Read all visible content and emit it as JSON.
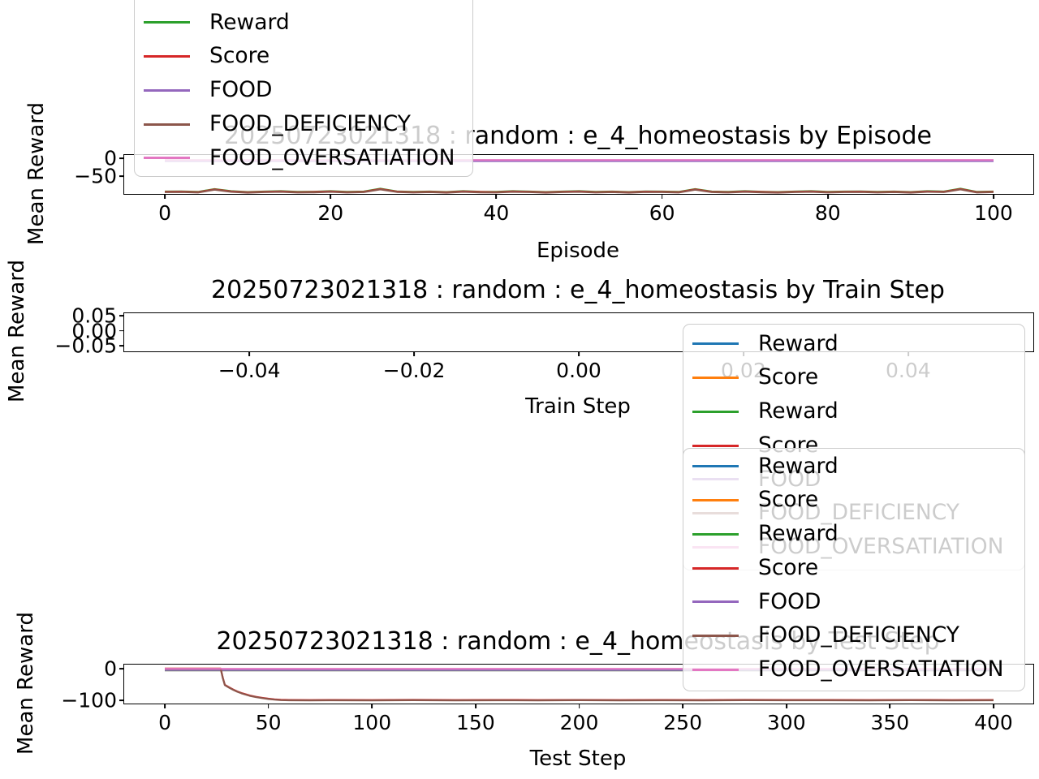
{
  "figure": {
    "background": "#ffffff"
  },
  "colors": {
    "blue": "#1f77b4",
    "orange": "#ff7f0e",
    "green": "#2ca02c",
    "red": "#d62728",
    "purple": "#9467bd",
    "brown": "#8c564b",
    "pink": "#e377c2",
    "spine": "#000000",
    "legend_edge": "#cccccc"
  },
  "chart_data": [
    {
      "id": "by-episode",
      "type": "line",
      "title": "20250723021318 : random : e_4_homeostasis by Episode",
      "xlabel": "Episode",
      "ylabel": "Mean Reward",
      "xlim": [
        -4.9,
        104.8
      ],
      "ylim": [
        -101,
        10.3
      ],
      "grid": false,
      "xticks": [
        {
          "v": 0,
          "label": "0"
        },
        {
          "v": 20,
          "label": "20"
        },
        {
          "v": 40,
          "label": "40"
        },
        {
          "v": 60,
          "label": "60"
        },
        {
          "v": 80,
          "label": "80"
        },
        {
          "v": 100,
          "label": "100"
        }
      ],
      "yticks": [
        {
          "v": 0,
          "label": "0"
        },
        {
          "v": -50,
          "label": "−50"
        }
      ],
      "series": [
        {
          "name": "Reward",
          "color": "#2ca02c",
          "x": [
            0,
            2,
            4,
            6,
            8,
            10,
            12,
            14,
            16,
            18,
            20,
            22,
            24,
            26,
            28,
            30,
            32,
            34,
            36,
            38,
            40,
            42,
            44,
            46,
            48,
            50,
            52,
            54,
            56,
            58,
            60,
            62,
            64,
            66,
            68,
            70,
            72,
            74,
            76,
            78,
            80,
            82,
            84,
            86,
            88,
            90,
            92,
            94,
            96,
            98,
            100
          ],
          "y": [
            -94,
            -93.5,
            -95,
            -87,
            -93,
            -95.5,
            -94,
            -93,
            -95,
            -94.5,
            -93,
            -95,
            -94,
            -86,
            -93.5,
            -95,
            -94,
            -95.5,
            -93,
            -94.5,
            -95,
            -93,
            -94,
            -95.5,
            -94,
            -93,
            -95,
            -94,
            -95.5,
            -93.5,
            -94,
            -95,
            -87,
            -94,
            -95,
            -93,
            -94.5,
            -95.5,
            -94,
            -93,
            -95,
            -94,
            -93.5,
            -95,
            -94,
            -95.5,
            -93,
            -94,
            -86,
            -95,
            -94
          ]
        },
        {
          "name": "Score",
          "color": "#d62728",
          "x": [
            0,
            2,
            4,
            6,
            8,
            10,
            12,
            14,
            16,
            18,
            20,
            22,
            24,
            26,
            28,
            30,
            32,
            34,
            36,
            38,
            40,
            42,
            44,
            46,
            48,
            50,
            52,
            54,
            56,
            58,
            60,
            62,
            64,
            66,
            68,
            70,
            72,
            74,
            76,
            78,
            80,
            82,
            84,
            86,
            88,
            90,
            92,
            94,
            96,
            98,
            100
          ],
          "y": [
            -94.8,
            -94.3,
            -95.8,
            -87.8,
            -93.8,
            -96.3,
            -94.8,
            -93.8,
            -95.8,
            -95.3,
            -93.8,
            -95.8,
            -94.8,
            -86.8,
            -94.3,
            -95.8,
            -94.8,
            -96.3,
            -93.8,
            -95.3,
            -95.8,
            -93.8,
            -94.8,
            -96.3,
            -94.8,
            -93.8,
            -95.8,
            -94.8,
            -96.3,
            -94.3,
            -94.8,
            -95.8,
            -87.8,
            -94.8,
            -95.8,
            -93.8,
            -95.3,
            -96.3,
            -94.8,
            -93.8,
            -95.8,
            -94.8,
            -94.3,
            -95.8,
            -94.8,
            -96.3,
            -93.8,
            -94.8,
            -86.8,
            -95.8,
            -94.8
          ]
        },
        {
          "name": "FOOD",
          "color": "#9467bd",
          "x": [
            0,
            100
          ],
          "y": [
            -7,
            -7
          ]
        },
        {
          "name": "FOOD_DEFICIENCY",
          "color": "#8c564b",
          "x": [
            0,
            2,
            4,
            6,
            8,
            10,
            12,
            14,
            16,
            18,
            20,
            22,
            24,
            26,
            28,
            30,
            32,
            34,
            36,
            38,
            40,
            42,
            44,
            46,
            48,
            50,
            52,
            54,
            56,
            58,
            60,
            62,
            64,
            66,
            68,
            70,
            72,
            74,
            76,
            78,
            80,
            82,
            84,
            86,
            88,
            90,
            92,
            94,
            96,
            98,
            100
          ],
          "y": [
            -96,
            -95.5,
            -97,
            -89,
            -95,
            -97.5,
            -96,
            -95,
            -97,
            -96.5,
            -95,
            -97,
            -96,
            -88,
            -95.5,
            -97,
            -96,
            -97.5,
            -95,
            -96.5,
            -97,
            -95,
            -96,
            -97.5,
            -96,
            -95,
            -97,
            -96,
            -97.5,
            -95.5,
            -96,
            -97,
            -89,
            -96,
            -97,
            -95,
            -96.5,
            -97.5,
            -96,
            -95,
            -97,
            -96,
            -95.5,
            -97,
            -96,
            -97.5,
            -95,
            -96,
            -88,
            -97,
            -96
          ]
        },
        {
          "name": "FOOD_OVERSATIATION",
          "color": "#e377c2",
          "x": [
            0,
            100
          ],
          "y": [
            -4,
            -4
          ]
        }
      ]
    },
    {
      "id": "by-train-step",
      "type": "line",
      "title": "20250723021318 : random : e_4_homeostasis by Train Step",
      "xlabel": "Train Step",
      "ylabel": "Mean Reward",
      "xlim": [
        -0.0552,
        0.0552
      ],
      "ylim": [
        -0.0689,
        0.0581
      ],
      "grid": false,
      "xticks": [
        {
          "v": -0.04,
          "label": "−0.04"
        },
        {
          "v": -0.02,
          "label": "−0.02"
        },
        {
          "v": 0.0,
          "label": "0.00"
        },
        {
          "v": 0.02,
          "label": "0.02"
        },
        {
          "v": 0.04,
          "label": "0.04"
        }
      ],
      "yticks": [
        {
          "v": 0.05,
          "label": "0.05"
        },
        {
          "v": 0.0,
          "label": "0.00"
        },
        {
          "v": -0.05,
          "label": "−0.05"
        }
      ],
      "series": []
    },
    {
      "id": "by-test-step",
      "type": "line",
      "title": "20250723021318 : random : e_4_homeostasis by Test Step",
      "xlabel": "Test Step",
      "ylabel": "Mean Reward",
      "xlim": [
        -19.6,
        419.2
      ],
      "ylim": [
        -110.3,
        12.8
      ],
      "grid": false,
      "xticks": [
        {
          "v": 0,
          "label": "0"
        },
        {
          "v": 50,
          "label": "50"
        },
        {
          "v": 100,
          "label": "100"
        },
        {
          "v": 150,
          "label": "150"
        },
        {
          "v": 200,
          "label": "200"
        },
        {
          "v": 250,
          "label": "250"
        },
        {
          "v": 300,
          "label": "300"
        },
        {
          "v": 350,
          "label": "350"
        },
        {
          "v": 400,
          "label": "400"
        }
      ],
      "yticks": [
        {
          "v": 0,
          "label": "0"
        },
        {
          "v": -100,
          "label": "−100"
        }
      ],
      "series": [
        {
          "name": "Reward",
          "color": "#1f77b4",
          "x": [
            0,
            400
          ],
          "y": [
            -5.5,
            -5.5
          ]
        },
        {
          "name": "Score",
          "color": "#ff7f0e",
          "x": [
            0,
            400
          ],
          "y": [
            -5.2,
            -5.2
          ]
        },
        {
          "name": "Reward-2",
          "color": "#2ca02c",
          "x": [
            0,
            400
          ],
          "y": [
            -4.8,
            -4.8
          ]
        },
        {
          "name": "Score-2",
          "color": "#d62728",
          "x": [
            0,
            5,
            10,
            15,
            20,
            25,
            27,
            28,
            29,
            31,
            33,
            35,
            37,
            39,
            41,
            44,
            47,
            50,
            53,
            56,
            60,
            70,
            80,
            100,
            120,
            140,
            160,
            180,
            200,
            220,
            240,
            260,
            280,
            300,
            320,
            340,
            360,
            380,
            400
          ],
          "y": [
            0.2,
            0.2,
            0.2,
            0.2,
            0.2,
            0.2,
            0.2,
            -29,
            -51,
            -59,
            -66,
            -72,
            -77,
            -81,
            -85,
            -89,
            -92,
            -95,
            -97,
            -98.5,
            -99,
            -99.4,
            -99,
            -99.3,
            -98.8,
            -99.2,
            -99,
            -99.4,
            -98.9,
            -99.2,
            -99,
            -99.3,
            -98.8,
            -99.1,
            -99,
            -99.3,
            -98.9,
            -99.2,
            -99
          ]
        },
        {
          "name": "FOOD",
          "color": "#9467bd",
          "x": [
            0,
            400
          ],
          "y": [
            -4.2,
            -4.2
          ]
        },
        {
          "name": "FOOD_DEFICIENCY",
          "color": "#8c564b",
          "x": [
            0,
            5,
            10,
            15,
            20,
            25,
            27,
            28,
            29,
            31,
            33,
            35,
            37,
            39,
            41,
            44,
            47,
            50,
            53,
            56,
            60,
            70,
            80,
            100,
            120,
            140,
            160,
            180,
            200,
            220,
            240,
            260,
            280,
            300,
            320,
            340,
            360,
            380,
            400
          ],
          "y": [
            -0.8,
            -0.8,
            -0.8,
            -0.8,
            -0.8,
            -0.8,
            -0.8,
            -30,
            -52,
            -60,
            -67,
            -73,
            -78,
            -82,
            -86,
            -90,
            -93,
            -96,
            -98,
            -99.5,
            -100,
            -100.4,
            -100,
            -100.3,
            -99.8,
            -100.2,
            -100,
            -100.4,
            -99.9,
            -100.2,
            -100,
            -100.3,
            -99.8,
            -100.1,
            -100,
            -100.3,
            -99.9,
            -100.2,
            -100
          ]
        },
        {
          "name": "FOOD_OVERSATIATION",
          "color": "#e377c2",
          "x": [
            0,
            400
          ],
          "y": [
            -0.5,
            -0.5
          ]
        }
      ]
    }
  ],
  "legends": [
    {
      "id": "legend-episode",
      "entries": [
        {
          "label": "Reward",
          "color": "#2ca02c"
        },
        {
          "label": "Score",
          "color": "#d62728"
        },
        {
          "label": "FOOD",
          "color": "#9467bd"
        },
        {
          "label": "FOOD_DEFICIENCY",
          "color": "#8c564b"
        },
        {
          "label": "FOOD_OVERSATIATION",
          "color": "#e377c2"
        }
      ]
    },
    {
      "id": "legend-train-step",
      "entries": [
        {
          "label": "Reward",
          "color": "#1f77b4"
        },
        {
          "label": "Score",
          "color": "#ff7f0e"
        },
        {
          "label": "Reward",
          "color": "#2ca02c"
        },
        {
          "label": "Score",
          "color": "#d62728"
        },
        {
          "label": "FOOD",
          "color": "#9467bd"
        },
        {
          "label": "FOOD_DEFICIENCY",
          "color": "#8c564b"
        },
        {
          "label": "FOOD_OVERSATIATION",
          "color": "#e377c2"
        }
      ]
    },
    {
      "id": "legend-test-step",
      "entries": [
        {
          "label": "Reward",
          "color": "#1f77b4"
        },
        {
          "label": "Score",
          "color": "#ff7f0e"
        },
        {
          "label": "Reward",
          "color": "#2ca02c"
        },
        {
          "label": "Score",
          "color": "#d62728"
        },
        {
          "label": "FOOD",
          "color": "#9467bd"
        },
        {
          "label": "FOOD_DEFICIENCY",
          "color": "#8c564b"
        },
        {
          "label": "FOOD_OVERSATIATION",
          "color": "#e377c2"
        }
      ]
    }
  ]
}
